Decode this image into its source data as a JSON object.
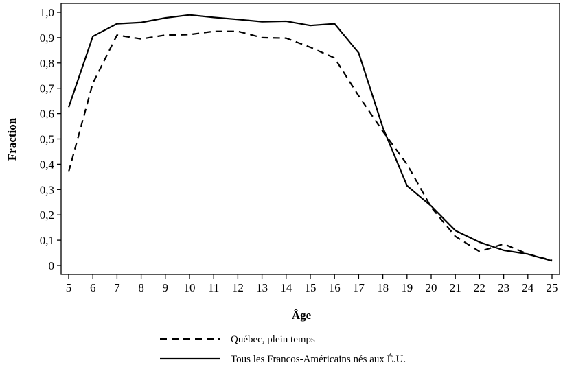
{
  "chart_data": {
    "type": "line",
    "xlabel": "Âge",
    "ylabel": "Fraction",
    "xlim": [
      5,
      25
    ],
    "ylim": [
      0,
      1.0
    ],
    "x_ticks": [
      "5",
      "6",
      "7",
      "8",
      "9",
      "10",
      "11",
      "12",
      "13",
      "14",
      "15",
      "16",
      "17",
      "18",
      "19",
      "20",
      "21",
      "22",
      "23",
      "24",
      "25"
    ],
    "y_ticks": [
      "0",
      "0,1",
      "0,2",
      "0,3",
      "0,4",
      "0,5",
      "0,6",
      "0,7",
      "0,8",
      "0,9",
      "1,0"
    ],
    "grid": false,
    "legend_position": "bottom",
    "x": [
      5,
      6,
      7,
      8,
      9,
      10,
      11,
      12,
      13,
      14,
      15,
      16,
      17,
      18,
      19,
      20,
      21,
      22,
      23,
      24,
      25
    ],
    "series": [
      {
        "name": "Québec, plein temps",
        "style": "dashed",
        "color": "#000000",
        "values": [
          0.37,
          0.72,
          0.91,
          0.895,
          0.91,
          0.912,
          0.925,
          0.925,
          0.9,
          0.898,
          0.862,
          0.82,
          0.67,
          0.53,
          0.4,
          0.23,
          0.115,
          0.055,
          0.085,
          0.045,
          0.02
        ]
      },
      {
        "name": "Tous les Francos-Américains nés aux É.U.",
        "style": "solid",
        "color": "#000000",
        "values": [
          0.625,
          0.905,
          0.955,
          0.96,
          0.978,
          0.99,
          0.98,
          0.972,
          0.963,
          0.965,
          0.948,
          0.955,
          0.84,
          0.545,
          0.315,
          0.235,
          0.138,
          0.092,
          0.06,
          0.045,
          0.018
        ]
      }
    ]
  }
}
